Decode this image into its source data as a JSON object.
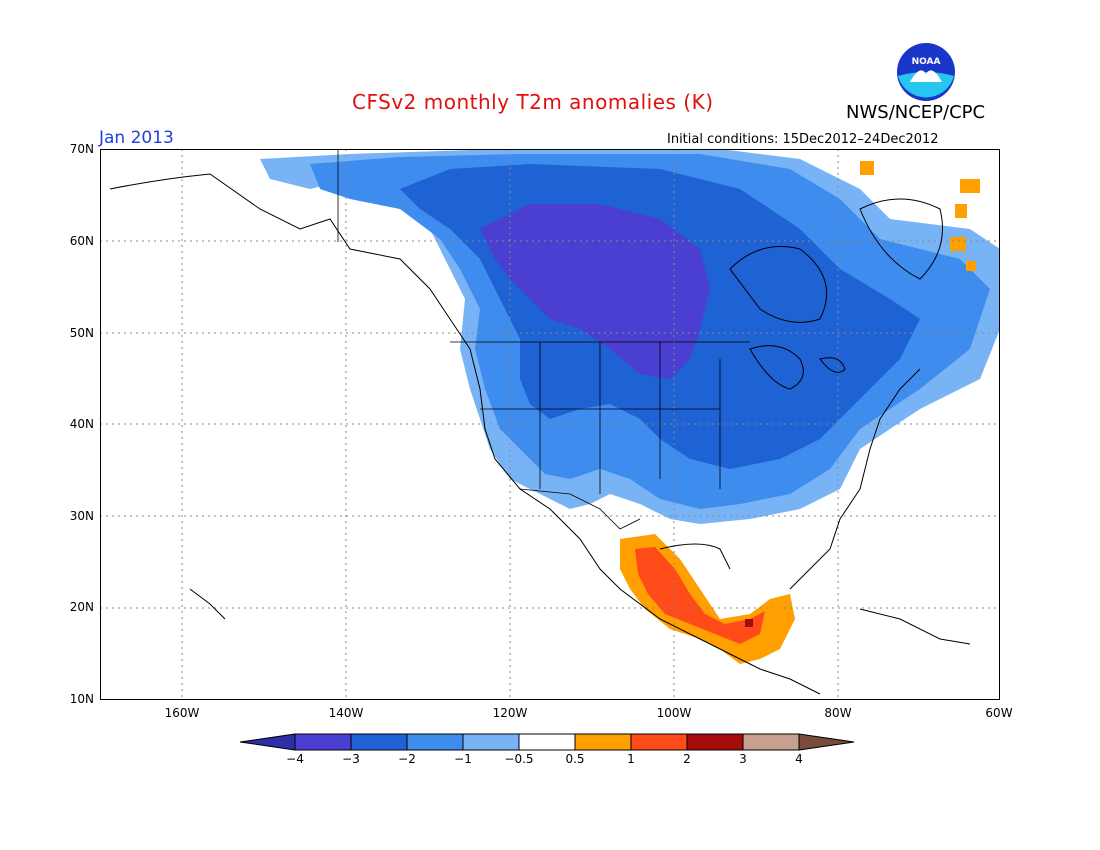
{
  "title": "CFSv2 monthly T2m anomalies (K)",
  "month_label": "Jan 2013",
  "initial_conditions": "Initial conditions: 15Dec2012–24Dec2012",
  "organization": "NWS/NCEP/CPC",
  "logo_text": "NOAA",
  "colors": {
    "title": "#e01010",
    "month": "#2040e0",
    "lt_m4": "#2c2fa6",
    "m4_m3": "#4a3fd0",
    "m3_m2": "#1f62d4",
    "m2_m1": "#3f8cef",
    "m1_m05": "#78b4f5",
    "neutral": "#ffffff",
    "p05_1": "#ffa000",
    "p1_2": "#ff4b1a",
    "p2_3": "#a50d0d",
    "p3_4": "#c8a090",
    "gt_4": "#7a4a3a"
  },
  "map": {
    "lat_labels": [
      "70N",
      "60N",
      "50N",
      "40N",
      "30N",
      "20N",
      "10N"
    ],
    "lon_labels": [
      "160W",
      "140W",
      "120W",
      "100W",
      "80W",
      "60W"
    ]
  },
  "colorbar": {
    "tick_labels": [
      "−4",
      "−3",
      "−2",
      "−1",
      "−0.5",
      "0.5",
      "1",
      "2",
      "3",
      "4"
    ],
    "bins": [
      "lt_m4",
      "m4_m3",
      "m3_m2",
      "m2_m1",
      "m1_m05",
      "neutral",
      "p05_1",
      "p1_2",
      "p2_3",
      "p3_4",
      "gt_4"
    ]
  }
}
